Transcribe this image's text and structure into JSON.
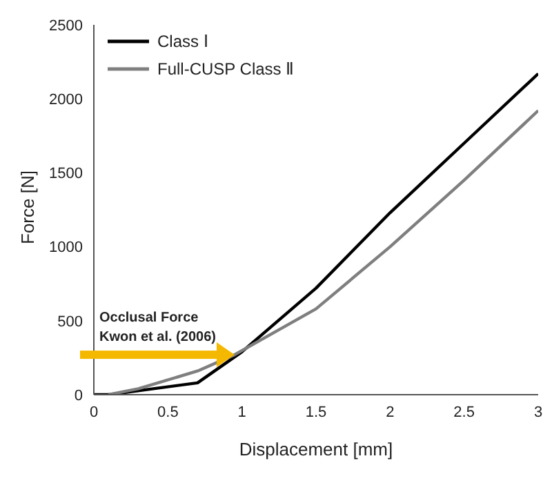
{
  "chart_data": {
    "type": "line",
    "xlabel": "Displacement [mm]",
    "ylabel": "Force [N]",
    "series": [
      {
        "name": "Class Ⅰ",
        "color": "#000000",
        "x": [
          0,
          0.1,
          0.7,
          1,
          1.5,
          2,
          2.5,
          3
        ],
        "values": [
          0,
          0,
          80,
          290,
          720,
          1230,
          1700,
          2170
        ]
      },
      {
        "name": "Full-CUSP Class Ⅱ",
        "color": "#7f7f7f",
        "x": [
          0.1,
          0.3,
          0.7,
          0.95,
          1.5,
          2,
          2.5,
          3
        ],
        "values": [
          0,
          40,
          160,
          270,
          580,
          1000,
          1450,
          1920
        ]
      }
    ],
    "xlim": [
      0,
      3
    ],
    "xticks": [
      0,
      0.5,
      1,
      1.5,
      2,
      2.5,
      3
    ],
    "ylim": [
      0,
      2500
    ],
    "yticks": [
      0,
      500,
      1000,
      1500,
      2000,
      2500
    ],
    "grid": false,
    "legend": "top left",
    "marker": "none",
    "line_style": "solid",
    "annotations": [
      {
        "text": "Occlusal Force\nKwon et al. (2006)",
        "x": 0.95,
        "y": 270
      }
    ]
  }
}
